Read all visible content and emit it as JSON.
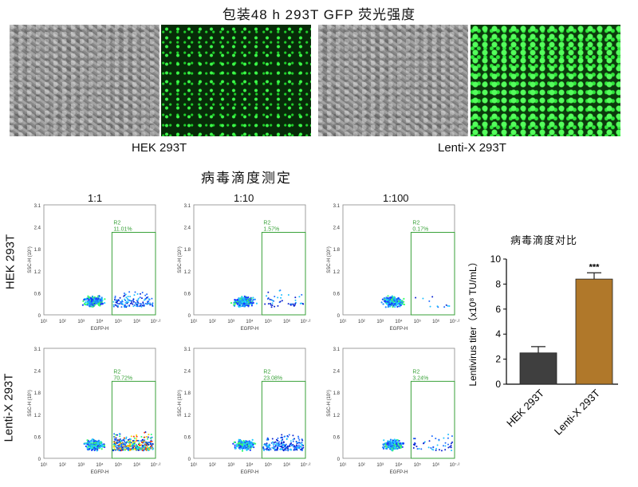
{
  "header": {
    "title": "包装48 h 293T GFP 荧光强度"
  },
  "images": {
    "left_label": "HEK 293T",
    "right_label": "Lenti-X 293T"
  },
  "flow": {
    "section_title": "病毒滴度测定",
    "columns": [
      "1:1",
      "1:10",
      "1:100"
    ],
    "rows": [
      "HEK 293T",
      "Lenti-X 293T"
    ],
    "gate_label": "R2",
    "gate_pct": [
      [
        "11.01%",
        "1.57%",
        "0.17%"
      ],
      [
        "70.72%",
        "23.08%",
        "3.24%"
      ]
    ],
    "x_axis_label": "EGFP-H",
    "y_axis_label": "SSC-H (10⁶)",
    "x_ticks": [
      "10¹",
      "10²",
      "10³",
      "10⁴",
      "10⁵",
      "10⁶",
      "10⁷·²"
    ],
    "y_ticks": [
      "0",
      "0.6",
      "1.2",
      "1.8",
      "2.4",
      "3.1"
    ]
  },
  "chart_data": {
    "type": "bar",
    "title": "病毒滴度对比",
    "categories": [
      "HEK 293T",
      "Lenti-X 293T"
    ],
    "values": [
      2.5,
      8.4
    ],
    "errors": [
      0.5,
      0.5
    ],
    "ylabel": "Lentivirus titer（x10⁸ TU/mL）",
    "ylim": [
      0,
      10
    ],
    "yticks": [
      0,
      2,
      4,
      6,
      8,
      10
    ],
    "significance": "***",
    "colors": [
      "#3f3f3f",
      "#b0782a"
    ]
  }
}
